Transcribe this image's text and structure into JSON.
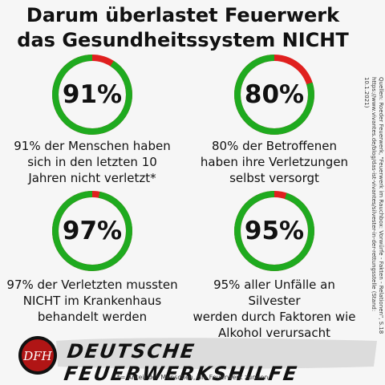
{
  "title_line1": "Darum überlastet Feuerwerk",
  "title_line2": "das Gesundheitssystem NICHT",
  "colors": {
    "ring_good": "#1faa1f",
    "ring_bad": "#e0201f"
  },
  "stats": [
    {
      "value": "91%",
      "fraction": 0.91,
      "caption_lines": [
        "91% der Menschen haben",
        "sich in den letzten 10",
        "Jahren nicht verletzt*"
      ]
    },
    {
      "value": "80%",
      "fraction": 0.8,
      "caption_lines": [
        "80% der Betroffenen",
        "haben ihre Verletzungen",
        "selbst versorgt"
      ]
    },
    {
      "value": "97%",
      "fraction": 0.97,
      "caption_lines": [
        "97% der Verletzten mussten",
        "NICHT im Krankenhaus",
        "behandelt werden"
      ]
    },
    {
      "value": "95%",
      "fraction": 0.95,
      "caption_lines": [
        "95% aller Unfälle an Silvester",
        "werden durch Faktoren wie",
        "Alkohol verursacht"
      ]
    }
  ],
  "source_line1": "Quellen: Roeder Feuerwerk, \"Feuerwerk im Rauchbox: Vorwürfe - Fakten - Relationen\", S.18",
  "source_line2": "https://www.vivantes.de/blog/das-ist-vivantes/silvester-in-der-rettungsstelle (Stand: 10.1.2021)",
  "logo_text": "DFH",
  "brand": "DEUTSCHE FEUERWERKSHILFE",
  "footnote": "*= Anteil der Menschen, die Feuerwerk zünden"
}
